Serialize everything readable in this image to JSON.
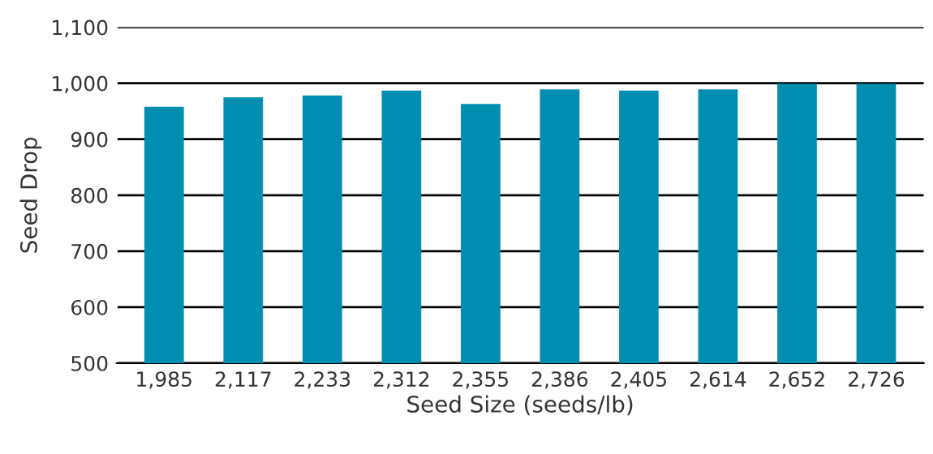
{
  "chart_data": {
    "type": "bar",
    "xlabel": "Seed Size (seeds/lb)",
    "ylabel": "Seed Drop",
    "categories": [
      "1,985",
      "2,117",
      "2,233",
      "2,312",
      "2,355",
      "2,386",
      "2,405",
      "2,614",
      "2,652",
      "2,726"
    ],
    "values": [
      958,
      975,
      978,
      987,
      963,
      989,
      987,
      989,
      999,
      999
    ],
    "color": "#008eb0",
    "ylim": [
      500,
      1100
    ],
    "yticks": [
      {
        "value": 500,
        "label": "500"
      },
      {
        "value": 600,
        "label": "600"
      },
      {
        "value": 700,
        "label": "700"
      },
      {
        "value": 800,
        "label": "800"
      },
      {
        "value": 900,
        "label": "900"
      },
      {
        "value": 1000,
        "label": "1,000"
      },
      {
        "value": 1100,
        "label": "1,100"
      }
    ],
    "grid": "y"
  }
}
